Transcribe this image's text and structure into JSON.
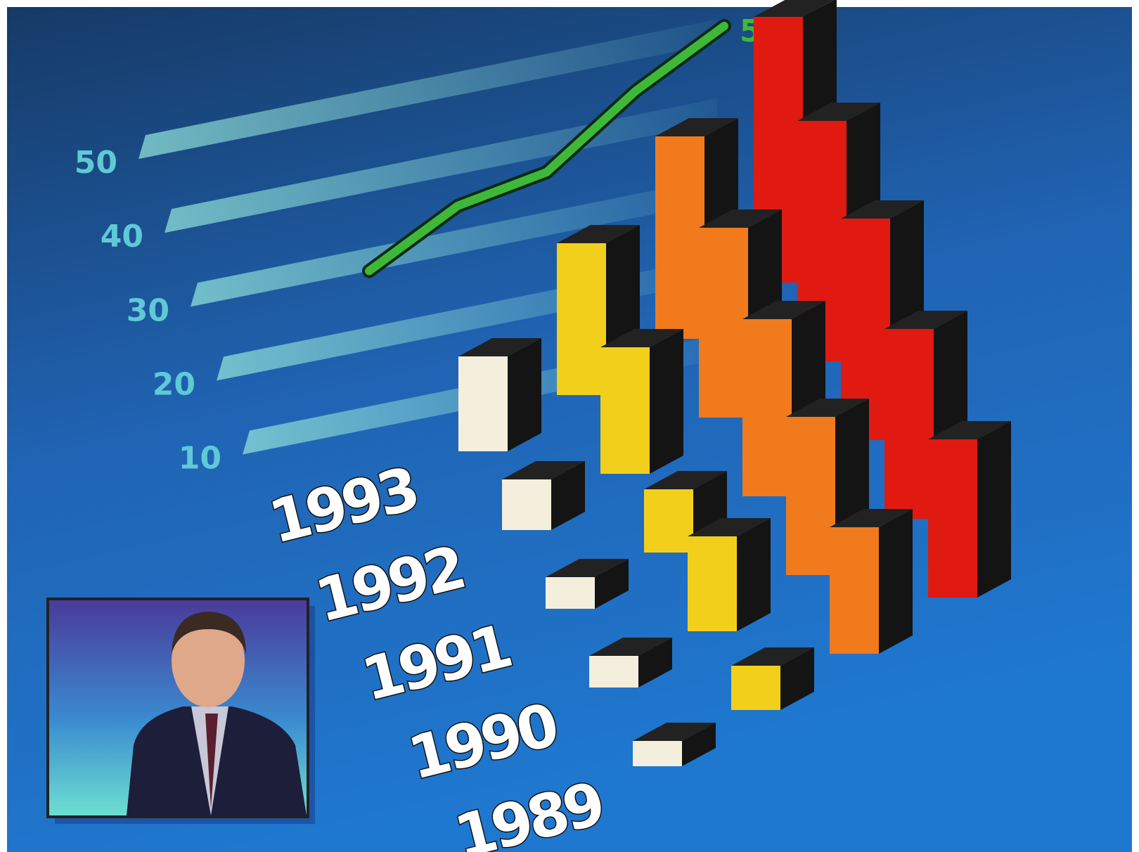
{
  "chart_data": {
    "type": "bar3d",
    "categories": [
      "1989",
      "1990",
      "1991",
      "1992",
      "1993"
    ],
    "series": [
      {
        "color": "#f4efdc",
        "values": [
          4,
          5,
          5,
          8,
          15
        ]
      },
      {
        "color": "#f2cf1a",
        "values": [
          7,
          15,
          10,
          20,
          24
        ]
      },
      {
        "color": "#f07a1c",
        "values": [
          20,
          25,
          28,
          30,
          32
        ]
      },
      {
        "color": "#e01a10",
        "values": [
          25,
          30,
          35,
          38,
          42
        ]
      }
    ],
    "line": {
      "color": "#3fb83a",
      "values": [
        30,
        36,
        38,
        46,
        52
      ],
      "value_labels": [
        null,
        null,
        null,
        null,
        "52%"
      ]
    },
    "ylim": [
      0,
      55
    ],
    "yticks": [
      10,
      20,
      30,
      40,
      50
    ],
    "grid": true
  }
}
